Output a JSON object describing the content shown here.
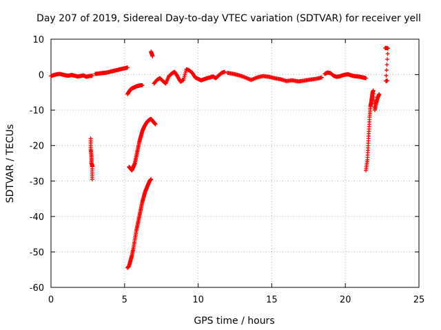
{
  "chart_data": {
    "type": "scatter",
    "title": "Day 207 of 2019, Sidereal Day-to-day VTEC variation (SDTVAR) for receiver yell",
    "xlabel": "GPS time / hours",
    "ylabel": "SDTVAR / TECUs",
    "xlim": [
      0,
      25
    ],
    "ylim": [
      -60,
      10
    ],
    "xticks": [
      0,
      5,
      10,
      15,
      20,
      25
    ],
    "yticks": [
      -60,
      -50,
      -40,
      -30,
      -20,
      -10,
      0,
      10
    ],
    "grid": true,
    "marker": "+",
    "color": "#ff0000",
    "series": [
      {
        "name": "baseline_0_3",
        "x": [
          0.0,
          0.2,
          0.4,
          0.6,
          0.8,
          1.0,
          1.2,
          1.4,
          1.6,
          1.8,
          2.0,
          2.2,
          2.4,
          2.6,
          2.8
        ],
        "y": [
          -0.4,
          -0.1,
          0.1,
          0.2,
          0.0,
          -0.2,
          -0.3,
          -0.1,
          -0.3,
          -0.5,
          -0.4,
          -0.2,
          -0.6,
          -0.4,
          -0.3
        ]
      },
      {
        "name": "arc_3_5",
        "x": [
          3.0,
          3.2,
          3.4,
          3.6,
          3.8,
          4.0,
          4.2,
          4.4,
          4.6,
          4.8,
          5.0,
          5.2
        ],
        "y": [
          0.2,
          0.3,
          0.4,
          0.5,
          0.6,
          0.8,
          1.0,
          1.2,
          1.4,
          1.6,
          1.8,
          2.0
        ]
      },
      {
        "name": "drop_2_8",
        "x": [
          2.7,
          2.7,
          2.75,
          2.75,
          2.8,
          2.8,
          2.8
        ],
        "y": [
          -18,
          -21,
          -23,
          -25,
          -25.5,
          -26,
          -29.5
        ]
      },
      {
        "name": "arc_5_3",
        "x": [
          5.2,
          5.3,
          5.4,
          5.5,
          5.6,
          5.7,
          5.8,
          5.9,
          6.0,
          6.1,
          6.2
        ],
        "y": [
          -5.5,
          -4.8,
          -4.2,
          -3.9,
          -3.7,
          -3.5,
          -3.3,
          -3.2,
          -3.1,
          -3.0,
          -3.0
        ]
      },
      {
        "name": "rise_5_3",
        "x": [
          5.3,
          5.4,
          5.5,
          5.6,
          5.7,
          5.8,
          5.9,
          6.0,
          6.1,
          6.2,
          6.3,
          6.4,
          6.5,
          6.6,
          6.7,
          6.8,
          6.9,
          7.0,
          7.1
        ],
        "y": [
          -26,
          -26.5,
          -27,
          -26,
          -25,
          -23,
          -21,
          -19,
          -17.5,
          -16,
          -15,
          -14.2,
          -13.5,
          -13,
          -12.7,
          -12.5,
          -13,
          -13.5,
          -14
        ]
      },
      {
        "name": "rise_5_2",
        "x": [
          5.2,
          5.3,
          5.4,
          5.5,
          5.6,
          5.7,
          5.8,
          5.9,
          6.0,
          6.1,
          6.2,
          6.3,
          6.4,
          6.5,
          6.6,
          6.7,
          6.8
        ],
        "y": [
          -54.5,
          -54,
          -52.5,
          -51,
          -49,
          -46.5,
          -44,
          -42,
          -40,
          -38,
          -36,
          -34.5,
          -33,
          -32,
          -31,
          -30,
          -29.5
        ]
      },
      {
        "name": "spike_6_8",
        "x": [
          6.8,
          6.85,
          6.9
        ],
        "y": [
          6.5,
          5.8,
          5.2
        ]
      },
      {
        "name": "mid_7_12",
        "x": [
          7.0,
          7.2,
          7.4,
          7.6,
          7.8,
          8.0,
          8.2,
          8.4,
          8.6,
          8.8,
          9.0,
          9.2,
          9.4,
          9.6,
          9.8,
          10.0,
          10.2,
          10.4,
          10.6,
          10.8,
          11.0,
          11.2,
          11.4,
          11.6,
          11.8
        ],
        "y": [
          -2.5,
          -1.5,
          -1.0,
          -1.8,
          -2.5,
          -0.5,
          0.3,
          0.8,
          -0.5,
          -2.0,
          -1.5,
          1.5,
          1.2,
          0.5,
          -0.8,
          -1.2,
          -1.6,
          -1.3,
          -1.0,
          -0.8,
          -0.5,
          -1.0,
          -0.2,
          0.5,
          0.8
        ]
      },
      {
        "name": "mid_12_18",
        "x": [
          12.0,
          12.4,
          12.8,
          13.2,
          13.6,
          14.0,
          14.4,
          14.8,
          15.2,
          15.6,
          16.0,
          16.4,
          16.8,
          17.2,
          17.6,
          18.0,
          18.4
        ],
        "y": [
          0.5,
          0.2,
          -0.2,
          -0.8,
          -1.5,
          -0.8,
          -0.4,
          -0.6,
          -1.0,
          -1.3,
          -1.8,
          -1.6,
          -1.9,
          -1.7,
          -1.4,
          -1.2,
          -0.8
        ]
      },
      {
        "name": "late_18_21",
        "x": [
          18.6,
          18.8,
          19.0,
          19.2,
          19.4,
          19.6,
          19.8,
          20.0,
          20.2,
          20.4,
          20.6,
          20.8,
          21.0,
          21.2,
          21.4
        ],
        "y": [
          0.2,
          0.6,
          0.4,
          -0.3,
          -0.6,
          -0.5,
          -0.2,
          0.0,
          0.1,
          -0.2,
          -0.4,
          -0.5,
          -0.6,
          -0.8,
          -1.0
        ]
      },
      {
        "name": "dip_21_7",
        "x": [
          21.4,
          21.5,
          21.55,
          21.6,
          21.65,
          21.7,
          21.75,
          21.8,
          21.85,
          21.9,
          22.0,
          22.1,
          22.2,
          22.3
        ],
        "y": [
          -27,
          -24,
          -20,
          -16,
          -12,
          -9,
          -8,
          -6.5,
          -5,
          -4.5,
          -10,
          -8,
          -6.5,
          -5.5
        ]
      },
      {
        "name": "late_22",
        "x": [
          22.7,
          22.8,
          22.9,
          22.75,
          22.85
        ],
        "y": [
          7.5,
          7.5,
          7.4,
          -1.8,
          -1.7
        ]
      }
    ]
  }
}
